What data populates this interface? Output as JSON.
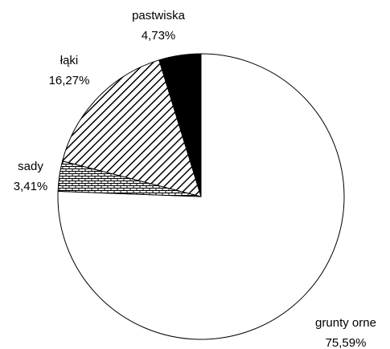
{
  "chart_data": {
    "type": "pie",
    "categories": [
      "grunty orne",
      "sady",
      "łąki",
      "pastwiska"
    ],
    "values": [
      75.59,
      3.41,
      16.27,
      4.73
    ],
    "value_labels": [
      "75,59%",
      "3,41%",
      "16,27%",
      "4,73%"
    ],
    "colors": [
      "#ffffff",
      "#ffffff",
      "#ffffff",
      "#000000"
    ],
    "patterns": [
      null,
      "brick",
      "diagonal",
      null
    ]
  }
}
